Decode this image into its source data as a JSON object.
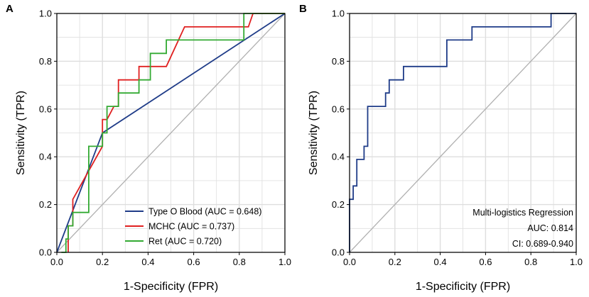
{
  "chart_data": [
    {
      "panel": "A",
      "type": "line",
      "title": "",
      "xlabel": "1-Specificity (FPR)",
      "ylabel": "Sensitivity (TPR)",
      "xlim": [
        0,
        1
      ],
      "ylim": [
        0,
        1
      ],
      "xticks": [
        "0.0",
        "0.2",
        "0.4",
        "0.6",
        "0.8",
        "1.0"
      ],
      "yticks": [
        "0.0",
        "0.2",
        "0.4",
        "0.6",
        "0.8",
        "1.0"
      ],
      "grid": true,
      "legend_position": "bottom-right",
      "reference_line": true,
      "series": [
        {
          "name": "Type O Blood (AUC = 0.648)",
          "color": "#1f3c88",
          "x": [
            0.0,
            0.2,
            1.0
          ],
          "y": [
            0.0,
            0.5,
            1.0
          ]
        },
        {
          "name": "MCHC (AUC = 0.737)",
          "color": "#e02020",
          "x": [
            0.05,
            0.05,
            0.07,
            0.07,
            0.2,
            0.2,
            0.22,
            0.22,
            0.25,
            0.25,
            0.27,
            0.27,
            0.32,
            0.32,
            0.36,
            0.36,
            0.48,
            0.56,
            0.84,
            0.86,
            1.0
          ],
          "y": [
            0.0,
            0.111,
            0.111,
            0.222,
            0.444,
            0.556,
            0.556,
            0.556,
            0.611,
            0.611,
            0.611,
            0.722,
            0.722,
            0.722,
            0.722,
            0.778,
            0.778,
            0.944,
            0.944,
            1.0,
            1.0
          ]
        },
        {
          "name": "Ret (AUC = 0.720)",
          "color": "#33aa33",
          "x": [
            0.02,
            0.04,
            0.04,
            0.05,
            0.05,
            0.07,
            0.07,
            0.14,
            0.14,
            0.2,
            0.2,
            0.22,
            0.22,
            0.27,
            0.27,
            0.32,
            0.36,
            0.36,
            0.41,
            0.41,
            0.48,
            0.48,
            0.82,
            0.82,
            0.86,
            1.0
          ],
          "y": [
            0.0,
            0.0,
            0.056,
            0.056,
            0.111,
            0.111,
            0.167,
            0.167,
            0.444,
            0.444,
            0.5,
            0.5,
            0.611,
            0.611,
            0.667,
            0.667,
            0.667,
            0.722,
            0.722,
            0.833,
            0.833,
            0.889,
            0.889,
            1.0,
            1.0,
            1.0
          ]
        }
      ]
    },
    {
      "panel": "B",
      "type": "line",
      "title": "",
      "xlabel": "1-Specificity (FPR)",
      "ylabel": "Sensitivity (TPR)",
      "xlim": [
        0,
        1
      ],
      "ylim": [
        0,
        1
      ],
      "xticks": [
        "0.0",
        "0.2",
        "0.4",
        "0.6",
        "0.8",
        "1.0"
      ],
      "yticks": [
        "0.0",
        "0.2",
        "0.4",
        "0.6",
        "0.8",
        "1.0"
      ],
      "grid": true,
      "reference_line": true,
      "annotations": [
        "Multi-logistics Regression",
        "AUC: 0.814",
        "CI: 0.689-0.940"
      ],
      "series": [
        {
          "name": "Multi-logistics Regression",
          "color": "#1f3c88",
          "x": [
            0.0,
            0.0,
            0.016,
            0.016,
            0.032,
            0.032,
            0.048,
            0.048,
            0.064,
            0.064,
            0.08,
            0.08,
            0.095,
            0.095,
            0.159,
            0.159,
            0.175,
            0.175,
            0.19,
            0.19,
            0.238,
            0.238,
            0.429,
            0.429,
            0.54,
            0.54,
            0.889,
            0.889,
            1.0
          ],
          "y": [
            0.0,
            0.222,
            0.222,
            0.278,
            0.278,
            0.389,
            0.389,
            0.389,
            0.389,
            0.444,
            0.444,
            0.611,
            0.611,
            0.611,
            0.611,
            0.667,
            0.667,
            0.722,
            0.722,
            0.722,
            0.722,
            0.778,
            0.778,
            0.889,
            0.889,
            0.944,
            0.944,
            1.0,
            1.0
          ]
        }
      ]
    }
  ]
}
